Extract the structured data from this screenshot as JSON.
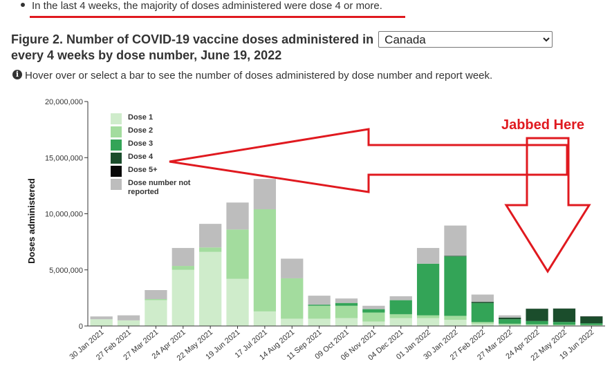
{
  "bullet": {
    "text": "In the last 4 weeks, the majority of doses administered were dose 4 or more."
  },
  "figure": {
    "title_before": "Figure 2. Number of COVID-19 vaccine doses administered in",
    "region_selected": "Canada",
    "title_after": "every 4 weeks by dose number, June 19, 2022"
  },
  "info": {
    "icon": "info-icon",
    "text": "Hover over or select a bar to see the number of doses administered by dose number and report week."
  },
  "colors": {
    "dose1": "#cfeccb",
    "dose2": "#a3dc9e",
    "dose3": "#33a457",
    "dose4": "#1b4d2c",
    "dose5": "#080808",
    "not_reported": "#bdbdbd",
    "annotation": "#e0191f"
  },
  "annotation": {
    "text": "Jabbed Here"
  },
  "chart_data": {
    "type": "bar",
    "stacked": true,
    "ylabel": "Doses administered",
    "ylim": [
      0,
      20000000
    ],
    "yticks": [
      "0",
      "5,000,000",
      "10,000,000",
      "15,000,000",
      "20,000,000"
    ],
    "ytick_values": [
      0,
      5000000,
      10000000,
      15000000,
      20000000
    ],
    "grid": false,
    "legend_position": "top-left",
    "categories": [
      "30 Jan 2021",
      "27 Feb 2021",
      "27 Mar 2021",
      "24 Apr 2021",
      "22 May 2021",
      "19 Jun 2021",
      "17 Jul 2021",
      "14 Aug 2021",
      "11 Sep 2021",
      "09 Oct 2021",
      "06 Nov 2021",
      "04 Dec 2021",
      "01 Jan 2022",
      "30 Jan 2022",
      "27 Feb 2022",
      "27 Mar 2022",
      "24 Apr 2022",
      "22 May 2022",
      "19 Jun 2022"
    ],
    "series": [
      {
        "name": "Dose 1",
        "key": "dose1",
        "values": [
          600000,
          500000,
          2300000,
          5000000,
          6600000,
          4200000,
          1300000,
          650000,
          650000,
          700000,
          400000,
          700000,
          700000,
          550000,
          200000,
          100000,
          80000,
          60000,
          50000
        ]
      },
      {
        "name": "Dose 2",
        "key": "dose2",
        "values": [
          0,
          0,
          100000,
          350000,
          400000,
          4400000,
          9100000,
          3600000,
          1150000,
          1100000,
          800000,
          350000,
          250000,
          350000,
          150000,
          100000,
          60000,
          50000,
          40000
        ]
      },
      {
        "name": "Dose 3",
        "key": "dose3",
        "values": [
          0,
          0,
          0,
          0,
          0,
          0,
          0,
          0,
          100000,
          250000,
          300000,
          1250000,
          4600000,
          5300000,
          1700000,
          400000,
          300000,
          250000,
          150000
        ]
      },
      {
        "name": "Dose 4",
        "key": "dose4",
        "values": [
          0,
          0,
          0,
          0,
          0,
          0,
          0,
          0,
          0,
          0,
          0,
          0,
          0,
          50000,
          100000,
          150000,
          1100000,
          1200000,
          600000
        ]
      },
      {
        "name": "Dose 5+",
        "key": "dose5",
        "values": [
          0,
          0,
          0,
          0,
          0,
          0,
          0,
          0,
          0,
          0,
          0,
          0,
          0,
          0,
          0,
          0,
          0,
          0,
          20000
        ]
      },
      {
        "name": "Dose number not reported",
        "key": "not_reported",
        "values": [
          250000,
          450000,
          800000,
          1600000,
          2100000,
          2400000,
          2700000,
          1750000,
          800000,
          400000,
          300000,
          350000,
          1400000,
          2700000,
          650000,
          200000,
          20000,
          20000,
          20000
        ]
      }
    ]
  }
}
